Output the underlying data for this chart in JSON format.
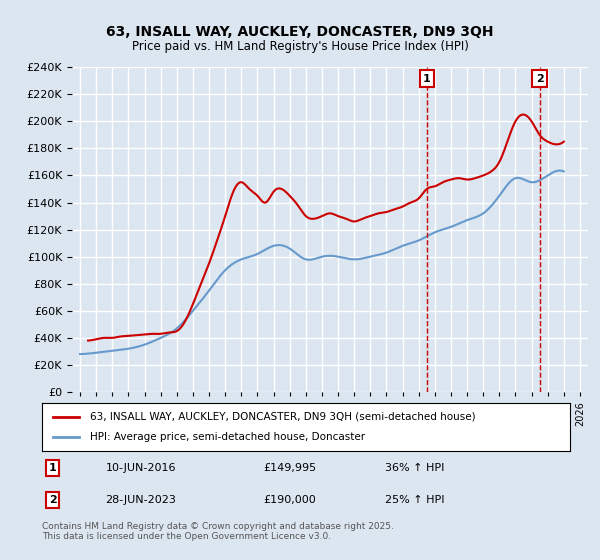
{
  "title": "63, INSALL WAY, AUCKLEY, DONCASTER, DN9 3QH",
  "subtitle": "Price paid vs. HM Land Registry's House Price Index (HPI)",
  "property_label": "63, INSALL WAY, AUCKLEY, DONCASTER, DN9 3QH (semi-detached house)",
  "hpi_label": "HPI: Average price, semi-detached house, Doncaster",
  "property_color": "#cc0000",
  "hpi_color": "#6699cc",
  "background_color": "#dce6f1",
  "plot_bg_color": "#dce6f1",
  "grid_color": "#ffffff",
  "ylim": [
    0,
    240000
  ],
  "yticks": [
    0,
    20000,
    40000,
    60000,
    80000,
    100000,
    120000,
    140000,
    160000,
    180000,
    200000,
    220000,
    240000
  ],
  "sale1": {
    "date": "10-JUN-2016",
    "price": 149995,
    "hpi_change": "36% ↑ HPI",
    "label": "1"
  },
  "sale2": {
    "date": "28-JUN-2023",
    "price": 190000,
    "hpi_change": "25% ↑ HPI",
    "label": "2"
  },
  "footnote": "Contains HM Land Registry data © Crown copyright and database right 2025.\nThis data is licensed under the Open Government Licence v3.0.",
  "hpi_years": [
    1995,
    1996,
    1997,
    1998,
    1999,
    2000,
    2001,
    2002,
    2003,
    2004,
    2005,
    2006,
    2007,
    2008,
    2009,
    2010,
    2011,
    2012,
    2013,
    2014,
    2015,
    2016,
    2017,
    2018,
    2019,
    2020,
    2021,
    2022,
    2023,
    2024,
    2025
  ],
  "hpi_values": [
    28000,
    29000,
    30500,
    32000,
    35000,
    40000,
    47000,
    60000,
    75000,
    90000,
    98000,
    102000,
    108000,
    106000,
    98000,
    100000,
    100000,
    98000,
    100000,
    103000,
    108000,
    112000,
    118000,
    122000,
    127000,
    132000,
    145000,
    158000,
    155000,
    160000,
    163000
  ],
  "prop_data": [
    [
      1995.5,
      38000
    ],
    [
      1996.0,
      39000
    ],
    [
      1996.5,
      40000
    ],
    [
      1997.0,
      40000
    ],
    [
      1997.5,
      41000
    ],
    [
      1998.0,
      41500
    ],
    [
      1998.5,
      42000
    ],
    [
      1999.0,
      42500
    ],
    [
      1999.5,
      43000
    ],
    [
      2000.0,
      43000
    ],
    [
      2000.5,
      44000
    ],
    [
      2001.0,
      45000
    ],
    [
      2001.5,
      52000
    ],
    [
      2002.0,
      65000
    ],
    [
      2002.5,
      80000
    ],
    [
      2003.0,
      95000
    ],
    [
      2003.5,
      112000
    ],
    [
      2004.0,
      130000
    ],
    [
      2004.5,
      148000
    ],
    [
      2005.0,
      155000
    ],
    [
      2005.5,
      150000
    ],
    [
      2006.0,
      145000
    ],
    [
      2006.5,
      140000
    ],
    [
      2007.0,
      148000
    ],
    [
      2007.5,
      150000
    ],
    [
      2008.0,
      145000
    ],
    [
      2008.5,
      138000
    ],
    [
      2009.0,
      130000
    ],
    [
      2009.5,
      128000
    ],
    [
      2010.0,
      130000
    ],
    [
      2010.5,
      132000
    ],
    [
      2011.0,
      130000
    ],
    [
      2011.5,
      128000
    ],
    [
      2012.0,
      126000
    ],
    [
      2012.5,
      128000
    ],
    [
      2013.0,
      130000
    ],
    [
      2013.5,
      132000
    ],
    [
      2014.0,
      133000
    ],
    [
      2014.5,
      135000
    ],
    [
      2015.0,
      137000
    ],
    [
      2015.5,
      140000
    ],
    [
      2016.0,
      143000
    ],
    [
      2016.5,
      149995
    ],
    [
      2017.0,
      152000
    ],
    [
      2017.5,
      155000
    ],
    [
      2018.0,
      157000
    ],
    [
      2018.5,
      158000
    ],
    [
      2019.0,
      157000
    ],
    [
      2019.5,
      158000
    ],
    [
      2020.0,
      160000
    ],
    [
      2020.5,
      163000
    ],
    [
      2021.0,
      170000
    ],
    [
      2021.5,
      185000
    ],
    [
      2022.0,
      200000
    ],
    [
      2022.5,
      205000
    ],
    [
      2023.0,
      200000
    ],
    [
      2023.5,
      190000
    ],
    [
      2024.0,
      185000
    ],
    [
      2024.5,
      183000
    ],
    [
      2025.0,
      185000
    ]
  ]
}
